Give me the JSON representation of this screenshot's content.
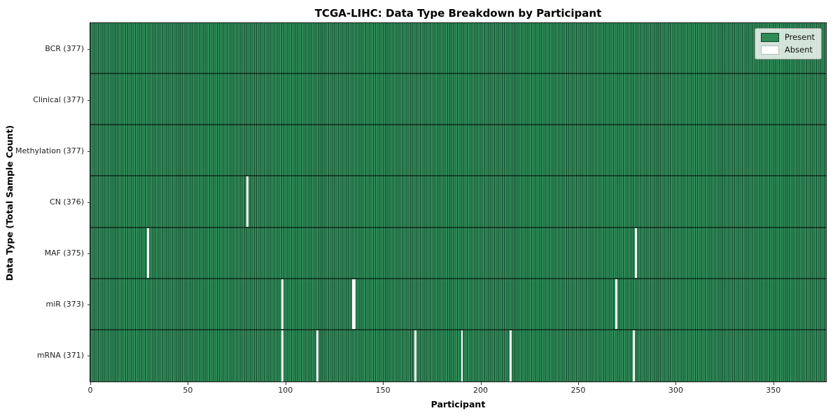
{
  "title": "TCGA-LIHC: Data Type Breakdown by Participant",
  "chart_data": {
    "type": "heatmap",
    "title": "TCGA-LIHC: Data Type Breakdown by Participant",
    "xlabel": "Participant",
    "ylabel": "Data Type (Total Sample Count)",
    "x_ticks": [
      0,
      50,
      100,
      150,
      200,
      250,
      300,
      350
    ],
    "x_max": 377,
    "n_participants": 377,
    "grid": "cell-edges",
    "legend": {
      "position": "upper right",
      "entries": [
        {
          "label": "Present",
          "color": "#2e8b57"
        },
        {
          "label": "Absent",
          "color": "#ffffff"
        }
      ]
    },
    "rows": [
      {
        "label": "BCR (377)",
        "data_type": "BCR",
        "present_count": 377,
        "absent_participants": []
      },
      {
        "label": "Clinical (377)",
        "data_type": "Clinical",
        "present_count": 377,
        "absent_participants": []
      },
      {
        "label": "Methylation (377)",
        "data_type": "Methylation",
        "present_count": 377,
        "absent_participants": []
      },
      {
        "label": "CN (376)",
        "data_type": "CN",
        "present_count": 376,
        "absent_participants": [
          80
        ]
      },
      {
        "label": "MAF (375)",
        "data_type": "MAF",
        "present_count": 375,
        "absent_participants": [
          29,
          279
        ]
      },
      {
        "label": "miR (373)",
        "data_type": "miR",
        "present_count": 373,
        "absent_participants": [
          98,
          134,
          135,
          269
        ]
      },
      {
        "label": "mRNA (371)",
        "data_type": "mRNA",
        "present_count": 371,
        "absent_participants": [
          98,
          116,
          166,
          190,
          215,
          278
        ]
      }
    ],
    "colors": {
      "present": "#2e8b57",
      "absent": "#ffffff",
      "cell_edge": "rgba(0,0,0,0.45)",
      "row_separator": "rgba(0,0,0,0.5)",
      "spine": "#1a1a1a",
      "background": "#ffffff"
    }
  }
}
